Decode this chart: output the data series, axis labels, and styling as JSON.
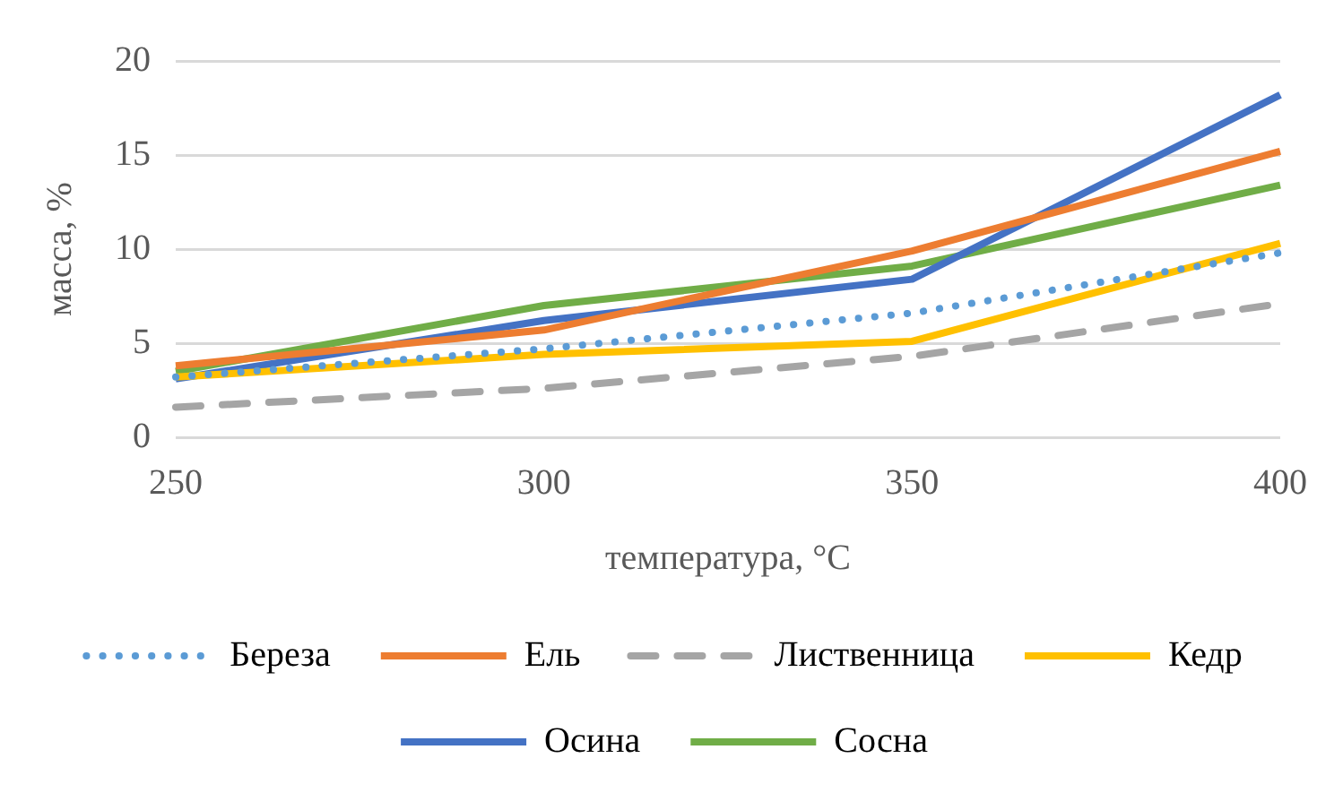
{
  "chart_data": {
    "type": "line",
    "xlabel": "температура, °С",
    "ylabel": "масса, %",
    "categories": [
      "250",
      "300",
      "350",
      "400"
    ],
    "series": [
      {
        "name": "Береза",
        "color": "#5b9bd5",
        "values": [
          3.2,
          4.7,
          6.6,
          9.8
        ],
        "line_style": "dotted"
      },
      {
        "name": "Ель",
        "color": "#ed7d31",
        "values": [
          3.8,
          5.7,
          9.9,
          15.2
        ]
      },
      {
        "name": "Лиственница",
        "color": "#a5a5a5",
        "values": [
          1.6,
          2.6,
          4.3,
          7.1
        ],
        "line_style": "dashed"
      },
      {
        "name": "Кедр",
        "color": "#ffc000",
        "values": [
          3.2,
          4.4,
          5.1,
          10.3
        ]
      },
      {
        "name": "Осина",
        "color": "#4472c4",
        "values": [
          3.1,
          6.2,
          8.4,
          18.2
        ]
      },
      {
        "name": "Сосна",
        "color": "#70ad47",
        "values": [
          3.5,
          7.0,
          9.1,
          13.4
        ]
      }
    ],
    "ylim": [
      0,
      20
    ],
    "yticks": [
      0,
      5,
      10,
      15,
      20
    ],
    "grid": "y",
    "legend": "bottom",
    "marker": "none",
    "line_style": "solid"
  }
}
